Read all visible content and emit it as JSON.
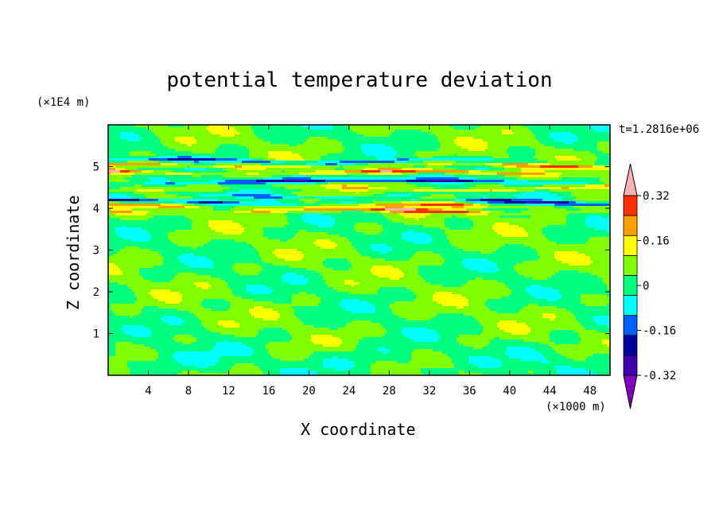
{
  "chart_data": {
    "type": "heatmap",
    "title": "potential temperature deviation",
    "xlabel": "X coordinate",
    "ylabel": "Z coordinate",
    "x_unit": "(×1000 m)",
    "y_unit": "(×1E4 m)",
    "time_label": "t=1.2816e+06",
    "xlim": [
      0,
      50
    ],
    "ylim": [
      0,
      6
    ],
    "x_ticks": [
      4,
      8,
      12,
      16,
      20,
      24,
      28,
      32,
      36,
      40,
      44,
      48
    ],
    "y_ticks": [
      1,
      2,
      3,
      4,
      5
    ],
    "colorbar": {
      "levels": [
        -0.4,
        -0.32,
        -0.24,
        -0.16,
        -0.08,
        0,
        0.08,
        0.16,
        0.24,
        0.32,
        0.4
      ],
      "tick_labels": [
        "0.32",
        "0.16",
        "0",
        "-0.16",
        "-0.32"
      ],
      "tick_values": [
        0.32,
        0.16,
        0,
        -0.16,
        -0.32
      ],
      "colors": [
        "#7f00bf",
        "#4000b0",
        "#0000a0",
        "#0060ff",
        "#00ffff",
        "#00ff80",
        "#80ff00",
        "#ffff00",
        "#ffa000",
        "#ff3000",
        "#ffb0b0"
      ],
      "extend": "both"
    },
    "bands": [
      {
        "z": 5.13,
        "value": -0.24,
        "note": "thin blue band near top"
      },
      {
        "z": 5.02,
        "value": 0.2
      },
      {
        "z": 4.85,
        "value": 0.3
      },
      {
        "z": 4.72,
        "value": -0.12
      },
      {
        "z": 4.62,
        "value": -0.3
      },
      {
        "z": 4.48,
        "value": 0.2
      },
      {
        "z": 4.3,
        "value": -0.12
      },
      {
        "z": 4.15,
        "value": -0.3
      },
      {
        "z": 4.05,
        "value": 0.2
      },
      {
        "z": 3.93,
        "value": 0.3
      }
    ]
  }
}
